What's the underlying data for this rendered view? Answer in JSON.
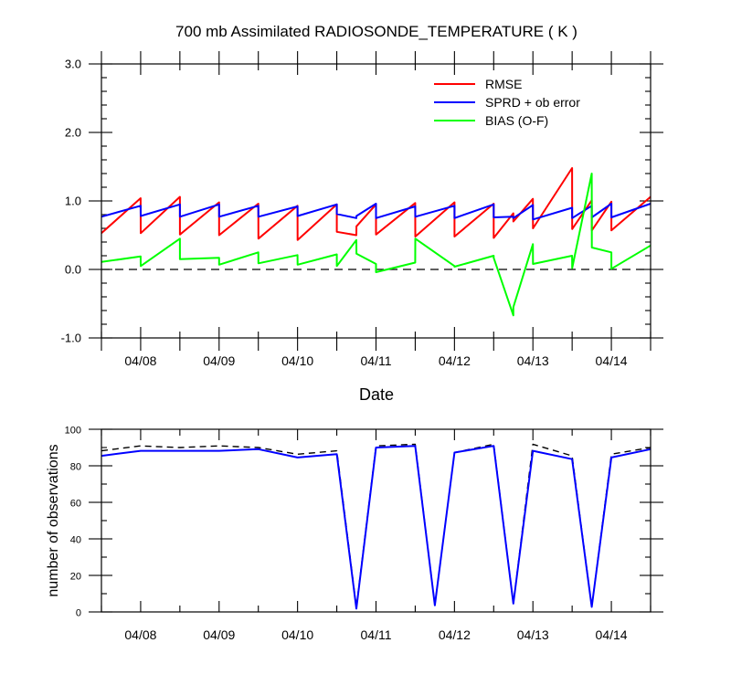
{
  "chart_data": [
    {
      "type": "line",
      "title": "700 mb Assimilated RADIOSONDE_TEMPERATURE ( K )",
      "xlabel": "Date",
      "ylabel": "",
      "x_ticks": [
        "04/08",
        "04/09",
        "04/10",
        "04/11",
        "04/12",
        "04/13",
        "04/14"
      ],
      "xlim": [
        0,
        14
      ],
      "x_unit_note": "",
      "ylim": [
        -1.0,
        3.0
      ],
      "y_ticks": [
        "-1.0",
        "0.0",
        "1.0",
        "2.0",
        "3.0"
      ],
      "zero_line": {
        "value": 0.0,
        "style": "dashed"
      },
      "legend": {
        "placement": "top-right"
      },
      "x": [
        0,
        1,
        1.001,
        2,
        2.001,
        3,
        3.001,
        4,
        4.001,
        5,
        5.001,
        6,
        6.001,
        6.5,
        6.501,
        7,
        7.001,
        8,
        8.001,
        9,
        9.001,
        10,
        10.001,
        10.5,
        10.501,
        11,
        11.001,
        12,
        12.001,
        12.5,
        12.501,
        13,
        13.001,
        14
      ],
      "series": [
        {
          "name": "RMSE",
          "color": "#ff0000",
          "values": [
            0.53,
            1.04,
            0.53,
            1.06,
            0.51,
            0.98,
            0.5,
            0.96,
            0.45,
            0.93,
            0.43,
            0.95,
            0.55,
            0.5,
            0.63,
            0.95,
            0.51,
            0.97,
            0.48,
            0.98,
            0.48,
            0.96,
            0.46,
            0.82,
            0.7,
            1.03,
            0.6,
            1.48,
            0.59,
            1.01,
            0.57,
            0.99,
            0.57,
            1.06
          ]
        },
        {
          "name": "SPRD + ob error",
          "color": "#0000ff",
          "values": [
            0.77,
            0.93,
            0.78,
            0.95,
            0.77,
            0.95,
            0.77,
            0.93,
            0.77,
            0.92,
            0.78,
            0.95,
            0.81,
            0.75,
            0.78,
            0.96,
            0.75,
            0.92,
            0.77,
            0.93,
            0.75,
            0.95,
            0.76,
            0.77,
            0.75,
            0.94,
            0.73,
            0.9,
            0.75,
            0.93,
            0.76,
            0.96,
            0.76,
            0.96
          ]
        },
        {
          "name": "BIAS (O-F)",
          "color": "#00ff00",
          "values": [
            0.11,
            0.19,
            0.05,
            0.45,
            0.15,
            0.17,
            0.07,
            0.25,
            0.09,
            0.21,
            0.07,
            0.22,
            0.05,
            0.43,
            0.23,
            0.08,
            -0.04,
            0.1,
            0.45,
            0.05,
            0.04,
            0.2,
            0.17,
            -0.67,
            -0.55,
            0.37,
            0.08,
            0.2,
            0.02,
            1.4,
            0.32,
            0.25,
            0.01,
            0.35
          ]
        }
      ]
    },
    {
      "type": "line",
      "title": "",
      "xlabel": "",
      "ylabel": "number of observations",
      "x_ticks": [
        "04/08",
        "04/09",
        "04/10",
        "04/11",
        "04/12",
        "04/13",
        "04/14"
      ],
      "xlim": [
        0,
        14
      ],
      "ylim": [
        0,
        110
      ],
      "y_ticks": [
        "0",
        "20",
        "40",
        "60",
        "80",
        "100"
      ],
      "x": [
        0,
        1,
        2,
        3,
        4,
        5,
        6,
        6.5,
        7,
        8,
        8.5,
        9,
        10,
        10.5,
        11,
        12,
        12.5,
        13,
        14
      ],
      "series": [
        {
          "style": "dashed",
          "color": "#000000",
          "values": [
            97,
            100,
            99,
            100,
            99,
            95,
            97,
            3,
            100,
            101,
            4,
            96,
            101,
            5,
            101,
            94,
            3,
            95,
            99
          ]
        },
        {
          "style": "solid",
          "color": "#0000ff",
          "values": [
            94,
            97,
            97,
            97,
            98,
            93,
            95,
            2,
            99,
            100,
            4,
            96,
            100,
            5,
            97,
            92,
            3,
            93,
            98
          ]
        }
      ]
    }
  ]
}
